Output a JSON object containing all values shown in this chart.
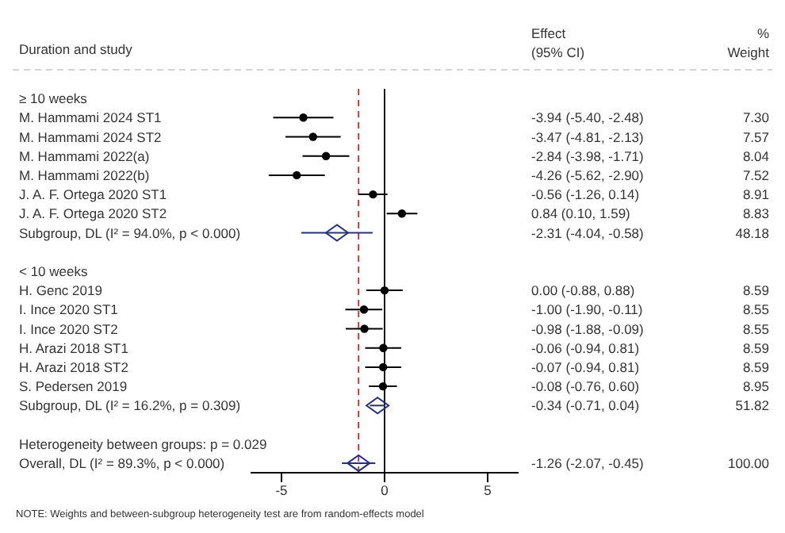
{
  "chart_data": {
    "type": "scatter",
    "orientation": "horizontal",
    "ylabel": "Duration and study",
    "categories": [
      "≥ 10 weeks",
      "M. Hammami 2024 ST1",
      "M. Hammami 2024 ST2",
      "M. Hammami 2022(a)",
      "M. Hammami 2022(b)",
      "J. A. F. Ortega 2020 ST1",
      "J. A. F. Ortega 2020 ST2",
      "Subgroup, DL (I² = 94.0%, p < 0.000)",
      null,
      "< 10 weeks",
      "H. Genc 2019",
      "I. Ince 2020 ST1",
      "I. Ince 2020 ST2",
      "H. Arazi 2018 ST1",
      "H. Arazi 2018 ST2",
      "S. Pedersen 2019",
      "Subgroup, DL (I² = 16.2%, p = 0.309)",
      null,
      "Heterogeneity between groups: p = 0.029",
      "Overall, DL (I² = 89.3%, p < 0.000)"
    ],
    "series": [
      {
        "type": "scatter",
        "marker": "circle",
        "color": "#000000",
        "values": [
          null,
          -3.94,
          -3.47,
          -2.84,
          -4.26,
          -0.56,
          0.84,
          null,
          null,
          null,
          0.0,
          -1.0,
          -0.98,
          -0.06,
          -0.07,
          -0.08,
          null,
          null,
          null,
          null
        ],
        "errors": [
          null,
          [
            -5.4,
            -2.48
          ],
          [
            -4.81,
            -2.13
          ],
          [
            -3.98,
            -1.71
          ],
          [
            -5.62,
            -2.9
          ],
          [
            -1.26,
            0.14
          ],
          [
            0.1,
            1.59
          ],
          null,
          null,
          null,
          [
            -0.88,
            0.88
          ],
          [
            -1.9,
            -0.11
          ],
          [
            -1.88,
            -0.09
          ],
          [
            -0.94,
            0.81
          ],
          [
            -0.94,
            0.81
          ],
          [
            -0.76,
            0.6
          ],
          null,
          null,
          null,
          null
        ]
      },
      {
        "type": "scatter",
        "marker": "diamond",
        "color": "#27307a",
        "values": [
          null,
          null,
          null,
          null,
          null,
          null,
          null,
          -2.31,
          null,
          null,
          null,
          null,
          null,
          null,
          null,
          null,
          -0.34,
          null,
          null,
          -1.26
        ],
        "errors": [
          null,
          null,
          null,
          null,
          null,
          null,
          null,
          [
            -4.04,
            -0.58
          ],
          null,
          null,
          null,
          null,
          null,
          null,
          null,
          null,
          [
            -0.71,
            0.04
          ],
          null,
          null,
          [
            -2.07,
            -0.45
          ]
        ]
      }
    ],
    "xlim": [
      -6.5,
      6.5
    ],
    "xticks": [
      -5,
      0,
      5
    ],
    "ref_lines": [
      {
        "axis": "x",
        "value": 0,
        "color": "#000000",
        "line_style": "solid"
      },
      {
        "axis": "x",
        "value": -1.26,
        "color": "#b03030",
        "line_style": "dashed"
      }
    ],
    "annotations": [
      "Effect",
      "(95% CI)",
      "%",
      "Weight",
      "-3.94 (-5.40, -2.48)",
      "-3.47 (-4.81, -2.13)",
      "-2.84 (-3.98, -1.71)",
      "-4.26 (-5.62, -2.90)",
      "-0.56 (-1.26, 0.14)",
      "0.84 (0.10, 1.59)",
      "-2.31 (-4.04, -0.58)",
      "0.00 (-0.88, 0.88)",
      "-1.00 (-1.90, -0.11)",
      "-0.98 (-1.88, -0.09)",
      "-0.06 (-0.94, 0.81)",
      "-0.07 (-0.94, 0.81)",
      "-0.08 (-0.76, 0.60)",
      "-0.34 (-0.71, 0.04)",
      "-1.26 (-2.07, -0.45)",
      "7.30",
      "7.57",
      "8.04",
      "7.52",
      "8.91",
      "8.83",
      "48.18",
      "8.59",
      "8.55",
      "8.55",
      "8.59",
      "8.59",
      "8.95",
      "51.82",
      "100.00",
      "NOTE: Weights and between-subgroup heterogeneity test are from random-effects model"
    ]
  }
}
